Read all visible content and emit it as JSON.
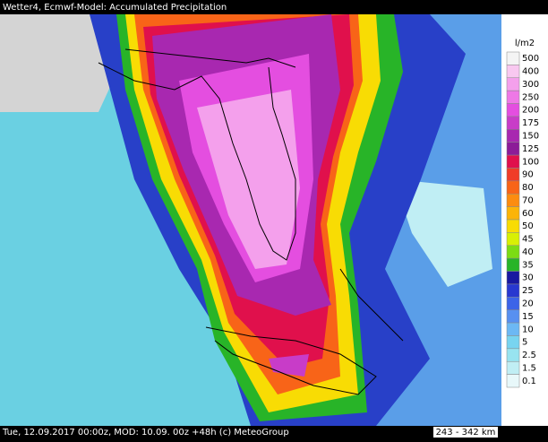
{
  "header": {
    "title": "Wetter4, Ecmwf-Model: Accumulated Precipitation"
  },
  "footer": {
    "text": "Tue, 12.09.2017 00:00z, MOD: 10.09. 00z +48h (c) MeteoGroup",
    "scale": "243 - 342 km"
  },
  "legend": {
    "unit": "l/m2",
    "items": [
      {
        "value": 500,
        "color": "#f4f4f4"
      },
      {
        "value": 400,
        "color": "#f8c8f0"
      },
      {
        "value": 300,
        "color": "#f4a0ec"
      },
      {
        "value": 250,
        "color": "#ee78e6"
      },
      {
        "value": 200,
        "color": "#e44ee0"
      },
      {
        "value": 175,
        "color": "#c83cc8"
      },
      {
        "value": 150,
        "color": "#a828b0"
      },
      {
        "value": 125,
        "color": "#8c1c98"
      },
      {
        "value": 100,
        "color": "#e0104c"
      },
      {
        "value": 90,
        "color": "#f03c28"
      },
      {
        "value": 80,
        "color": "#f86418"
      },
      {
        "value": 70,
        "color": "#fc8c10"
      },
      {
        "value": 60,
        "color": "#fcb408"
      },
      {
        "value": 50,
        "color": "#f8dc04"
      },
      {
        "value": 45,
        "color": "#d8f004"
      },
      {
        "value": 40,
        "color": "#7cdc14"
      },
      {
        "value": 35,
        "color": "#28b428"
      },
      {
        "value": 30,
        "color": "#1818a0"
      },
      {
        "value": 25,
        "color": "#2838d0"
      },
      {
        "value": 20,
        "color": "#3c64e8"
      },
      {
        "value": 15,
        "color": "#5890f0"
      },
      {
        "value": 10,
        "color": "#6cb8f4"
      },
      {
        "value": 5,
        "color": "#78d4f0"
      },
      {
        "value": 2.5,
        "color": "#98e4f0"
      },
      {
        "value": 1.5,
        "color": "#c0eef4"
      },
      {
        "value": 0.1,
        "color": "#e8f8fa"
      }
    ]
  }
}
